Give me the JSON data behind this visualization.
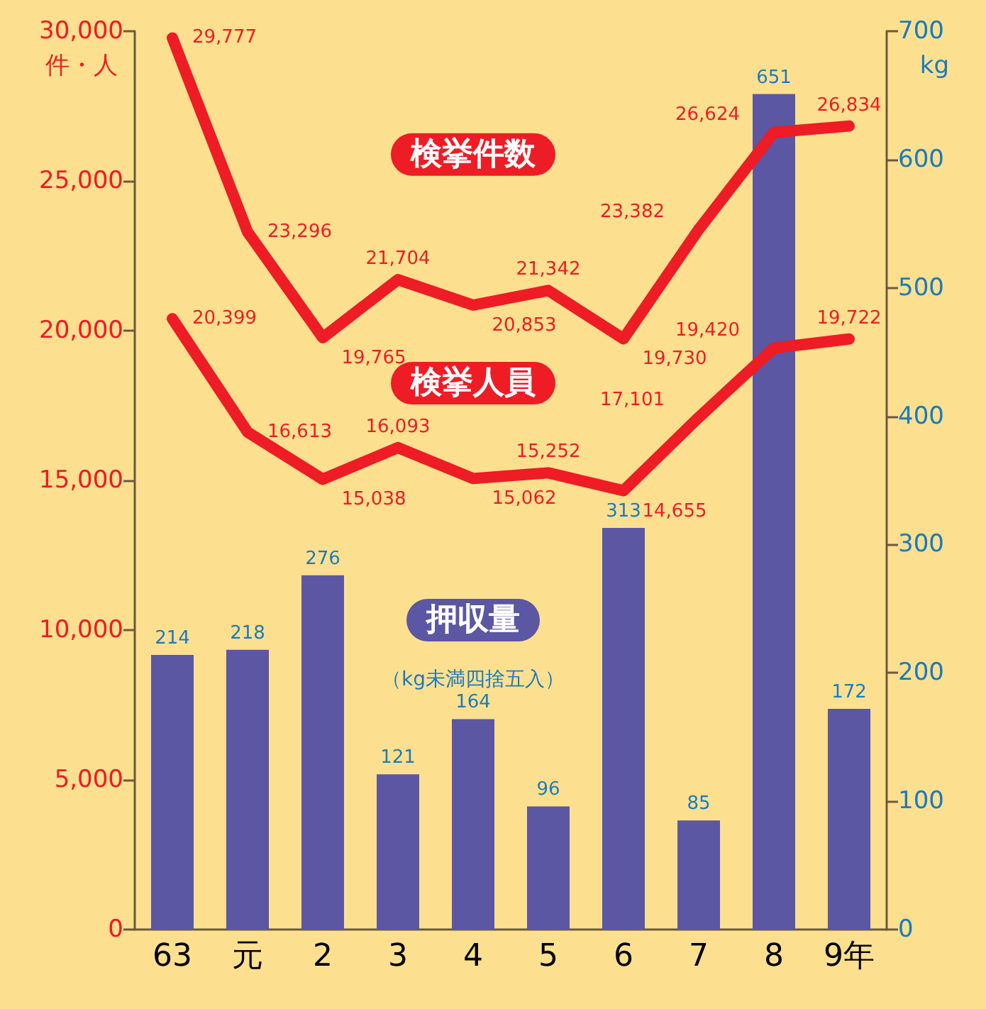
{
  "chart_data": {
    "type": "bar",
    "ylabel": "件・人",
    "y2label": "kg",
    "categories": [
      "63",
      "元",
      "2",
      "3",
      "4",
      "5",
      "6",
      "7",
      "8",
      "9年"
    ],
    "series": [
      {
        "name": "押収量",
        "axis": "y2",
        "color": "#5b57a3",
        "values": [
          214,
          218,
          276,
          121,
          164,
          96,
          313,
          85,
          651,
          172
        ],
        "value_labels": [
          "214",
          "218",
          "276",
          "121",
          "164",
          "96",
          "313",
          "85",
          "651",
          "172"
        ]
      },
      {
        "name": "検挙件数",
        "type": "line",
        "color": "#ee1c25",
        "values": [
          29777,
          23296,
          19765,
          21704,
          20853,
          21342,
          19730,
          23382,
          26624,
          26834
        ],
        "value_labels": [
          "29,777",
          "23,296",
          "19,765",
          "21,704",
          "20,853",
          "21,342",
          "19,730",
          "23,382",
          "26,624",
          "26,834"
        ]
      },
      {
        "name": "検挙人員",
        "type": "line",
        "color": "#ee1c25",
        "values": [
          20399,
          16613,
          15038,
          16093,
          15062,
          15252,
          14655,
          17101,
          19420,
          19722
        ],
        "value_labels": [
          "20,399",
          "16,613",
          "15,038",
          "16,093",
          "15,062",
          "15,252",
          "14,655",
          "17,101",
          "19,420",
          "19,722"
        ]
      }
    ],
    "annotations": [
      "（kg未満四捨五入）"
    ],
    "ylim": [
      0,
      30000
    ],
    "yticks": [
      {
        "value": 0,
        "label": "0"
      },
      {
        "value": 5000,
        "label": "5,000"
      },
      {
        "value": 10000,
        "label": "10,000"
      },
      {
        "value": 15000,
        "label": "15,000"
      },
      {
        "value": 20000,
        "label": "20,000"
      },
      {
        "value": 25000,
        "label": "25,000"
      },
      {
        "value": 30000,
        "label": "30,000"
      }
    ],
    "y2lim": [
      0,
      700
    ],
    "y2ticks": [
      0,
      100,
      200,
      300,
      400,
      500,
      600,
      700
    ],
    "marker": "none",
    "line_style": "solid"
  }
}
